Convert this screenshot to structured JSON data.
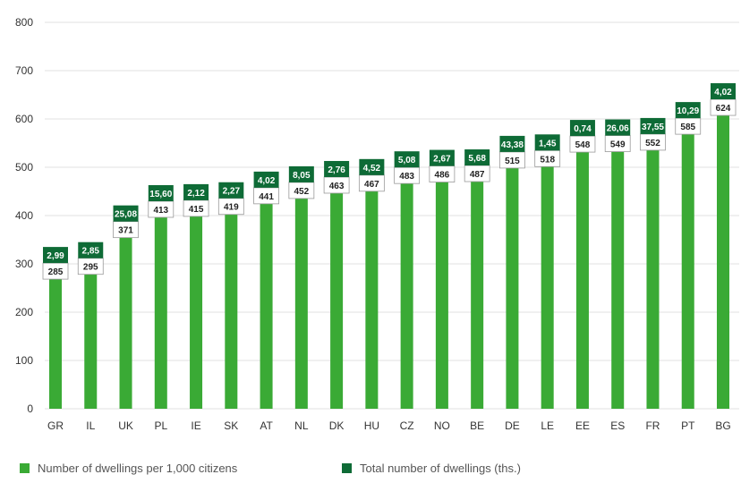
{
  "colors": {
    "bar": "#3aaa35",
    "label_box": "#0e6b36",
    "grid": "#e2e2e2",
    "text": "#333333"
  },
  "legend": {
    "series_1": "Number of dwellings per 1,000 citizens",
    "series_2": "Total number of dwellings (ths.)"
  },
  "chart_data": {
    "type": "bar",
    "title": "",
    "xlabel": "",
    "ylabel": "",
    "ylim": [
      0,
      800
    ],
    "yticks": [
      0,
      100,
      200,
      300,
      400,
      500,
      600,
      700,
      800
    ],
    "grid": true,
    "legend_position": "bottom",
    "categories": [
      "GR",
      "IL",
      "UK",
      "PL",
      "IE",
      "SK",
      "AT",
      "NL",
      "DK",
      "HU",
      "CZ",
      "NO",
      "BE",
      "DE",
      "LE",
      "EE",
      "ES",
      "FR",
      "PT",
      "BG"
    ],
    "series": [
      {
        "name": "Number of dwellings per 1,000 citizens",
        "values": [
          285,
          295,
          371,
          413,
          415,
          419,
          441,
          452,
          463,
          467,
          483,
          486,
          487,
          515,
          518,
          548,
          549,
          552,
          585,
          624
        ]
      },
      {
        "name": "Total number of dwellings (ths.)",
        "values": [
          "2,99",
          "2,85",
          "25,08",
          "15,60",
          "2,12",
          "2,27",
          "4,02",
          "8,05",
          "2,76",
          "4,52",
          "5,08",
          "2,67",
          "5,68",
          "43,38",
          "1,45",
          "0,74",
          "26,06",
          "37,55",
          "10,29",
          "4,02"
        ]
      }
    ]
  }
}
